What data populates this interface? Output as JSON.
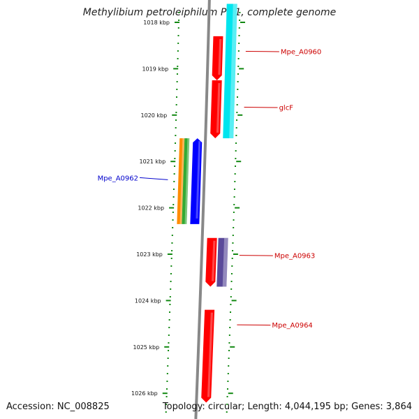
{
  "title": "Methylibium petroleiphilum PM1, complete genome",
  "footer": {
    "accession": "Accession: NC_008825",
    "summary": "Topology: circular; Length: 4,044,195 bp; Genes: 3,864"
  },
  "colors": {
    "ruler": "#118811",
    "backbone": "#888888",
    "forward_cds": "#ff0000",
    "reverse_cds": "#0000ff",
    "forward_label": "#cc0000",
    "reverse_label": "#0000cc",
    "track_cyan": "#00e5ee",
    "track_orange": "#ff8c00",
    "track_green": "#33aa33",
    "track_purple": "#5a4a9a"
  },
  "ruler": {
    "unit": "kbp",
    "ticks": [
      {
        "value": 1018,
        "label": "1018 kbp"
      },
      {
        "value": 1019,
        "label": "1019 kbp"
      },
      {
        "value": 1020,
        "label": "1020 kbp"
      },
      {
        "value": 1021,
        "label": "1021 kbp"
      },
      {
        "value": 1022,
        "label": "1022 kbp"
      },
      {
        "value": 1023,
        "label": "1023 kbp"
      },
      {
        "value": 1024,
        "label": "1024 kbp"
      },
      {
        "value": 1025,
        "label": "1025 kbp"
      },
      {
        "value": 1026,
        "label": "1026 kbp"
      }
    ]
  },
  "genes": [
    {
      "name": "Mpe_A0960",
      "strand": "forward",
      "start": 1018.3,
      "end": 1019.25
    },
    {
      "name": "glcF",
      "strand": "forward",
      "start": 1019.25,
      "end": 1020.5
    },
    {
      "name": "Mpe_A0962",
      "strand": "reverse",
      "start": 1020.5,
      "end": 1022.35
    },
    {
      "name": "Mpe_A0963",
      "strand": "forward",
      "start": 1022.65,
      "end": 1023.7
    },
    {
      "name": "Mpe_A0964",
      "strand": "forward",
      "start": 1024.2,
      "end": 1026.2
    }
  ],
  "features": [
    {
      "track": "cyan",
      "start": 1017.6,
      "end": 1019.25
    },
    {
      "track": "cyan",
      "start": 1019.25,
      "end": 1020.5
    },
    {
      "track": "orange",
      "start": 1020.5,
      "end": 1022.35
    },
    {
      "track": "green",
      "start": 1020.5,
      "end": 1022.35
    },
    {
      "track": "purple",
      "start": 1022.65,
      "end": 1023.7
    }
  ]
}
